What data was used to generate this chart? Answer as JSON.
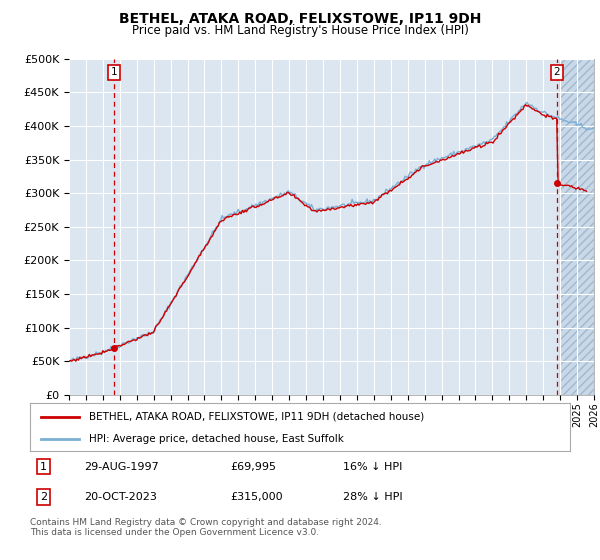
{
  "title": "BETHEL, ATAKA ROAD, FELIXSTOWE, IP11 9DH",
  "subtitle": "Price paid vs. HM Land Registry's House Price Index (HPI)",
  "background_color": "#ffffff",
  "plot_bg_color": "#dce6f1",
  "hatch_bg_color": "#c8d8e8",
  "grid_color": "#ffffff",
  "ylim": [
    0,
    500000
  ],
  "yticks": [
    0,
    50000,
    100000,
    150000,
    200000,
    250000,
    300000,
    350000,
    400000,
    450000,
    500000
  ],
  "ytick_labels": [
    "£0",
    "£50K",
    "£100K",
    "£150K",
    "£200K",
    "£250K",
    "£300K",
    "£350K",
    "£400K",
    "£450K",
    "£500K"
  ],
  "xmin": 1995,
  "xmax": 2026,
  "hatch_start": 2024.0,
  "sale1_date": 1997.65,
  "sale1_price": 69995,
  "sale1_label": "1",
  "sale2_date": 2023.8,
  "sale2_price": 315000,
  "sale2_label": "2",
  "legend_line1": "BETHEL, ATAKA ROAD, FELIXSTOWE, IP11 9DH (detached house)",
  "legend_line2": "HPI: Average price, detached house, East Suffolk",
  "table_row1": [
    "1",
    "29-AUG-1997",
    "£69,995",
    "16% ↓ HPI"
  ],
  "table_row2": [
    "2",
    "20-OCT-2023",
    "£315,000",
    "28% ↓ HPI"
  ],
  "footnote": "Contains HM Land Registry data © Crown copyright and database right 2024.\nThis data is licensed under the Open Government Licence v3.0.",
  "red_line_color": "#cc0000",
  "blue_line_color": "#7bafd4",
  "dot_color": "#cc0000",
  "vline_color": "#cc0000",
  "title_fontsize": 10,
  "subtitle_fontsize": 8.5
}
